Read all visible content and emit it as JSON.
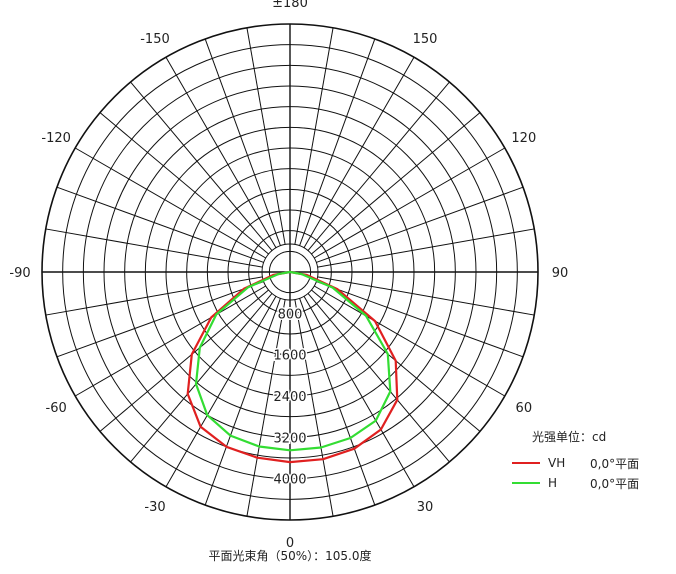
{
  "chart_data": {
    "type": "polar-line",
    "angle_labels": [
      {
        "angle": 180,
        "text": "±180"
      },
      {
        "angle": 150,
        "text": "150"
      },
      {
        "angle": -150,
        "text": "-150"
      },
      {
        "angle": 120,
        "text": "120"
      },
      {
        "angle": -120,
        "text": "-120"
      },
      {
        "angle": 90,
        "text": "90"
      },
      {
        "angle": -90,
        "text": "-90"
      },
      {
        "angle": 60,
        "text": "60"
      },
      {
        "angle": -60,
        "text": "-60"
      },
      {
        "angle": 30,
        "text": "30"
      },
      {
        "angle": -30,
        "text": "-30"
      },
      {
        "angle": 0,
        "text": "0"
      }
    ],
    "radial_ticks": [
      800,
      1600,
      2400,
      3200,
      4000
    ],
    "radial_tick_labels": [
      "800",
      "1600",
      "2400",
      "3200",
      "4000"
    ],
    "r_max": 4800,
    "angle_step_deg": 10,
    "series": [
      {
        "name": "VH",
        "color": "#e02020",
        "angles": [
          -180,
          -90,
          -80,
          -70,
          -60,
          -50,
          -40,
          -30,
          -20,
          -10,
          0,
          10,
          20,
          30,
          40,
          50,
          60,
          70,
          80,
          90,
          180
        ],
        "values": [
          0,
          0,
          330,
          950,
          1760,
          2480,
          3080,
          3460,
          3600,
          3650,
          3680,
          3680,
          3640,
          3520,
          3230,
          2670,
          1900,
          980,
          330,
          0,
          0
        ]
      },
      {
        "name": "H",
        "color": "#33dd33",
        "angles": [
          -180,
          -90,
          -80,
          -70,
          -60,
          -50,
          -40,
          -30,
          -20,
          -10,
          0,
          10,
          20,
          30,
          40,
          50,
          60,
          70,
          80,
          90,
          180
        ],
        "values": [
          0,
          0,
          230,
          860,
          1650,
          2280,
          2830,
          3200,
          3370,
          3430,
          3450,
          3450,
          3420,
          3320,
          3020,
          2470,
          1700,
          880,
          230,
          0,
          0
        ]
      }
    ],
    "legend_title": "光强单位：cd",
    "legend_entries": [
      {
        "name": "VH",
        "desc": "0,0°平面",
        "color": "#e02020"
      },
      {
        "name": "H",
        "desc": "0,0°平面",
        "color": "#33dd33"
      }
    ],
    "caption": "平面光束角（50%）：105.0度"
  }
}
